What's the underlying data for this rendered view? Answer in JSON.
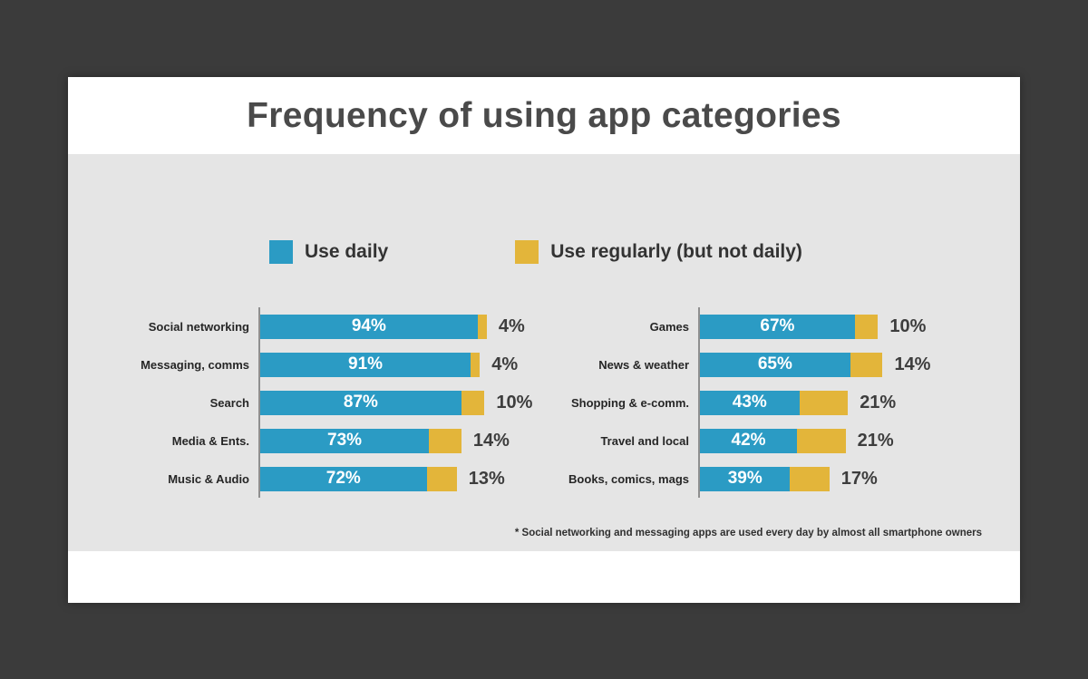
{
  "slide": {
    "title": "Frequency of using app categories",
    "footnote": "* Social networking and messaging apps are used every day by almost all smartphone owners"
  },
  "legend": {
    "items": [
      {
        "label": "Use daily",
        "color": "#2b9bc4"
      },
      {
        "label": "Use regularly (but not daily)",
        "color": "#e3b53a"
      }
    ]
  },
  "chart_data": {
    "type": "bar",
    "orientation": "horizontal",
    "stacked": true,
    "unit": "%",
    "xlim": [
      0,
      100
    ],
    "title": "Frequency of using app categories",
    "legend_position": "top",
    "grid": false,
    "series_names": [
      "Use daily",
      "Use regularly (but not daily)"
    ],
    "colors": {
      "use_daily": "#2b9bc4",
      "use_regularly": "#e3b53a"
    },
    "panels": [
      {
        "rows": [
          {
            "category": "Social networking",
            "use_daily": 94,
            "use_regularly": 4
          },
          {
            "category": "Messaging, comms",
            "use_daily": 91,
            "use_regularly": 4
          },
          {
            "category": "Search",
            "use_daily": 87,
            "use_regularly": 10
          },
          {
            "category": "Media & Ents.",
            "use_daily": 73,
            "use_regularly": 14
          },
          {
            "category": "Music & Audio",
            "use_daily": 72,
            "use_regularly": 13
          }
        ]
      },
      {
        "rows": [
          {
            "category": "Games",
            "use_daily": 67,
            "use_regularly": 10
          },
          {
            "category": "News & weather",
            "use_daily": 65,
            "use_regularly": 14
          },
          {
            "category": "Shopping & e-comm.",
            "use_daily": 43,
            "use_regularly": 21
          },
          {
            "category": "Travel and local",
            "use_daily": 42,
            "use_regularly": 21
          },
          {
            "category": "Books, comics, mags",
            "use_daily": 39,
            "use_regularly": 17
          }
        ]
      }
    ]
  }
}
